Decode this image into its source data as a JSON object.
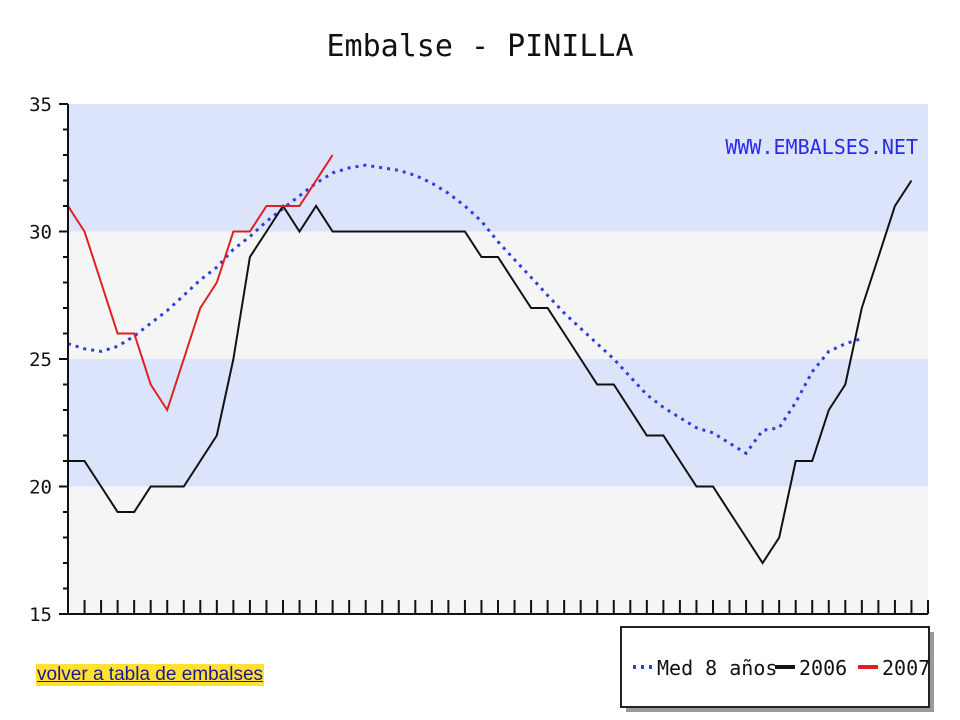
{
  "link": {
    "label": "volver a tabla de embalses"
  },
  "colors": {
    "band_blue": "#dbe4fb",
    "band_white": "#f5f5f5",
    "med": "#2b3fe0",
    "y2006": "#111111",
    "y2007": "#e02020",
    "watermark": "#2a2ae8"
  },
  "chart_data": {
    "type": "line",
    "title": "Embalse - PINILLA",
    "watermark": "WWW.EMBALSES.NET",
    "xlabel": "",
    "ylabel": "",
    "ylim": [
      15,
      35
    ],
    "yticks": [
      15,
      20,
      25,
      30,
      35
    ],
    "x_count": 53,
    "grid": false,
    "legend_position": "bottom-right",
    "series": [
      {
        "name": "Med 8 años",
        "style": "dotted",
        "color": "#2b3fe0",
        "values": [
          25.6,
          25.4,
          25.3,
          25.5,
          25.9,
          26.4,
          26.9,
          27.5,
          28.1,
          28.6,
          29.3,
          29.8,
          30.4,
          30.9,
          31.4,
          31.9,
          32.3,
          32.5,
          32.6,
          32.5,
          32.4,
          32.2,
          31.9,
          31.5,
          31.0,
          30.4,
          29.6,
          28.9,
          28.2,
          27.5,
          26.8,
          26.2,
          25.6,
          25.0,
          24.3,
          23.6,
          23.1,
          22.7,
          22.3,
          22.1,
          21.7,
          21.3,
          22.2,
          22.3,
          23.3,
          24.5,
          25.3,
          25.6,
          25.8
        ]
      },
      {
        "name": "2006",
        "style": "solid",
        "color": "#111111",
        "values": [
          21,
          21,
          20,
          19,
          19,
          20,
          20,
          20,
          21,
          22,
          25,
          29,
          30,
          31,
          30,
          31,
          30,
          30,
          30,
          30,
          30,
          30,
          30,
          30,
          30,
          29,
          29,
          28,
          27,
          27,
          26,
          25,
          24,
          24,
          23,
          22,
          22,
          21,
          20,
          20,
          19,
          18,
          17,
          18,
          21,
          21,
          23,
          24,
          27,
          29,
          31,
          32
        ]
      },
      {
        "name": "2007",
        "style": "solid",
        "color": "#e02020",
        "values": [
          31,
          30,
          28,
          26,
          26,
          24,
          23,
          25,
          27,
          28,
          30,
          30,
          31,
          31,
          31,
          32,
          33
        ]
      }
    ]
  }
}
